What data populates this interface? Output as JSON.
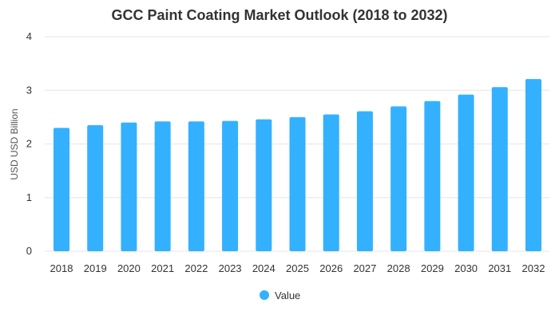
{
  "chart_data": {
    "type": "bar",
    "title": "GCC Paint Coating Market Outlook (2018 to 2032)",
    "xlabel": "",
    "ylabel": "USD USD Billion",
    "categories": [
      "2018",
      "2019",
      "2020",
      "2021",
      "2022",
      "2023",
      "2024",
      "2025",
      "2026",
      "2027",
      "2028",
      "2029",
      "2030",
      "2031",
      "2032"
    ],
    "series": [
      {
        "name": "Value",
        "values": [
          2.3,
          2.35,
          2.4,
          2.42,
          2.42,
          2.43,
          2.46,
          2.5,
          2.55,
          2.61,
          2.7,
          2.8,
          2.92,
          3.06,
          3.21
        ]
      }
    ],
    "ylim": [
      0,
      4
    ],
    "yticks": [
      "0",
      "1",
      "2",
      "3",
      "4"
    ],
    "grid": true,
    "legend_position": "bottom-center",
    "colors": {
      "bar": "#33b1ff",
      "grid": "#e6e6e6",
      "text": "#333333"
    }
  }
}
